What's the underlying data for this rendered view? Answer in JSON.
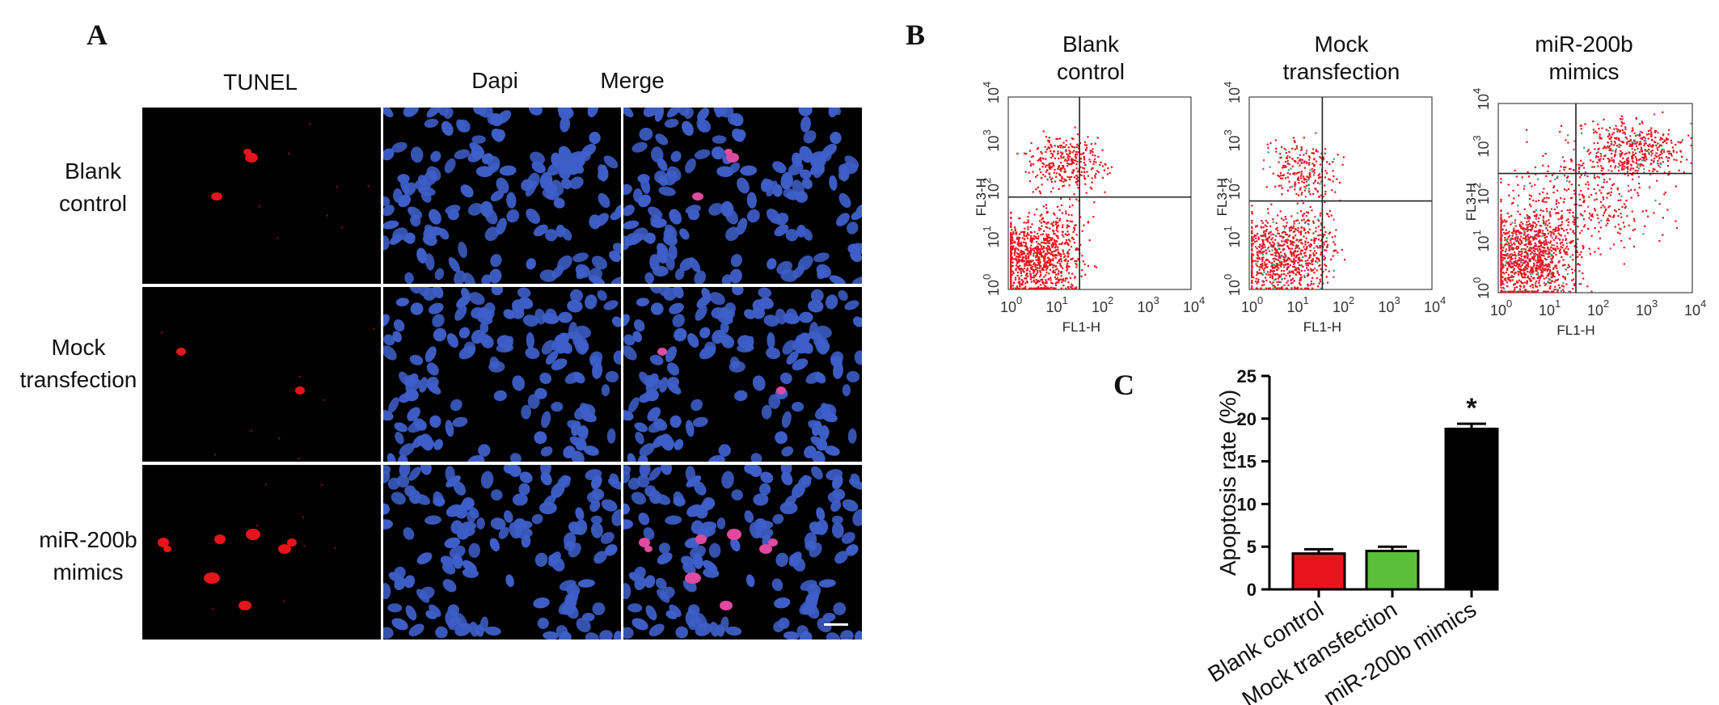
{
  "panel_a": {
    "letter": "A",
    "columns": [
      "TUNEL",
      "Dapi",
      "Merge"
    ],
    "rows": [
      {
        "line1": "Blank",
        "line2": "control"
      },
      {
        "line1": "Mock",
        "line2": "transfection"
      },
      {
        "line1": "miR-200b",
        "line2": "mimics"
      }
    ],
    "colors": {
      "tunel": "#e8141c",
      "dapi": "#3e5fc9",
      "merge_pink": "#e04aa0",
      "background": "#000000"
    }
  },
  "panel_b": {
    "letter": "B",
    "plots": [
      {
        "title1": "Blank",
        "title2": "control"
      },
      {
        "title1": "Mock",
        "title2": "transfection"
      },
      {
        "title1": "miR-200b",
        "title2": "mimics"
      }
    ],
    "xlabel": "FL1-H",
    "ylabel": "FL3-H",
    "tick_base": "10",
    "tick_exps": [
      "0",
      "1",
      "2",
      "3",
      "4"
    ],
    "dot_color": "#e8141c"
  },
  "panel_c": {
    "letter": "C",
    "chart_data": {
      "type": "bar",
      "categories": [
        "Blank control",
        "Mock transfection",
        "miR-200b mimics"
      ],
      "values": [
        4.2,
        4.5,
        18.8
      ],
      "errors": [
        0.5,
        0.5,
        0.6
      ],
      "colors": [
        "#e8141c",
        "#5cbf3a",
        "#000000"
      ],
      "ylabel": "Apoptosis rate (%)",
      "ylim": [
        0,
        25
      ],
      "yticks": [
        "0",
        "5",
        "10",
        "15",
        "20",
        "25"
      ],
      "annotation": "*"
    }
  }
}
